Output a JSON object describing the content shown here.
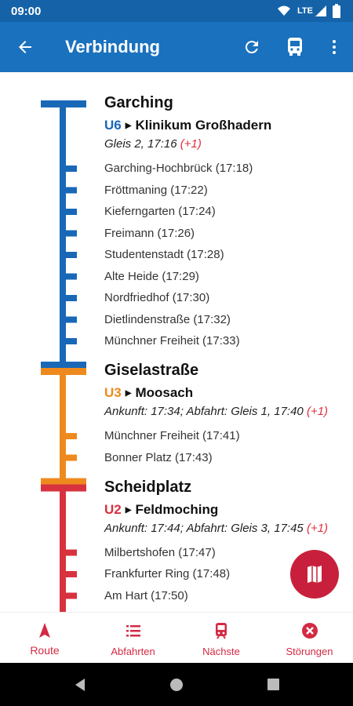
{
  "status_bar": {
    "time": "09:00",
    "network": "LTE"
  },
  "app_bar": {
    "title": "Verbindung"
  },
  "legs": [
    {
      "station": "Garching",
      "line": "U6",
      "destination": "Klinikum Großhadern",
      "info": "Gleis 2, 17:16",
      "delay": "(+1)",
      "color": "#1868b7",
      "stops": [
        "Garching-Hochbrück (17:18)",
        "Fröttmaning (17:22)",
        "Kieferngarten (17:24)",
        "Freimann (17:26)",
        "Studentenstadt (17:28)",
        "Alte Heide (17:29)",
        "Nordfriedhof (17:30)",
        "Dietlindenstraße (17:32)",
        "Münchner Freiheit (17:33)"
      ]
    },
    {
      "station": "Giselastraße",
      "line": "U3",
      "destination": "Moosach",
      "info": "Ankunft: 17:34; Abfahrt: Gleis 1, 17:40",
      "delay": "(+1)",
      "color": "#ee8a1d",
      "stops": [
        "Münchner Freiheit (17:41)",
        "Bonner Platz (17:43)"
      ]
    },
    {
      "station": "Scheidplatz",
      "line": "U2",
      "destination": "Feldmoching",
      "info": "Ankunft: 17:44; Abfahrt: Gleis 3, 17:45",
      "delay": "(+1)",
      "color": "#d8323f",
      "stops": [
        "Milbertshofen (17:47)",
        "Frankfurter Ring (17:48)",
        "Am Hart (17:50)"
      ]
    }
  ],
  "bottom_nav": [
    {
      "label": "Route"
    },
    {
      "label": "Abfahrten"
    },
    {
      "label": "Nächste"
    },
    {
      "label": "Störungen"
    }
  ]
}
